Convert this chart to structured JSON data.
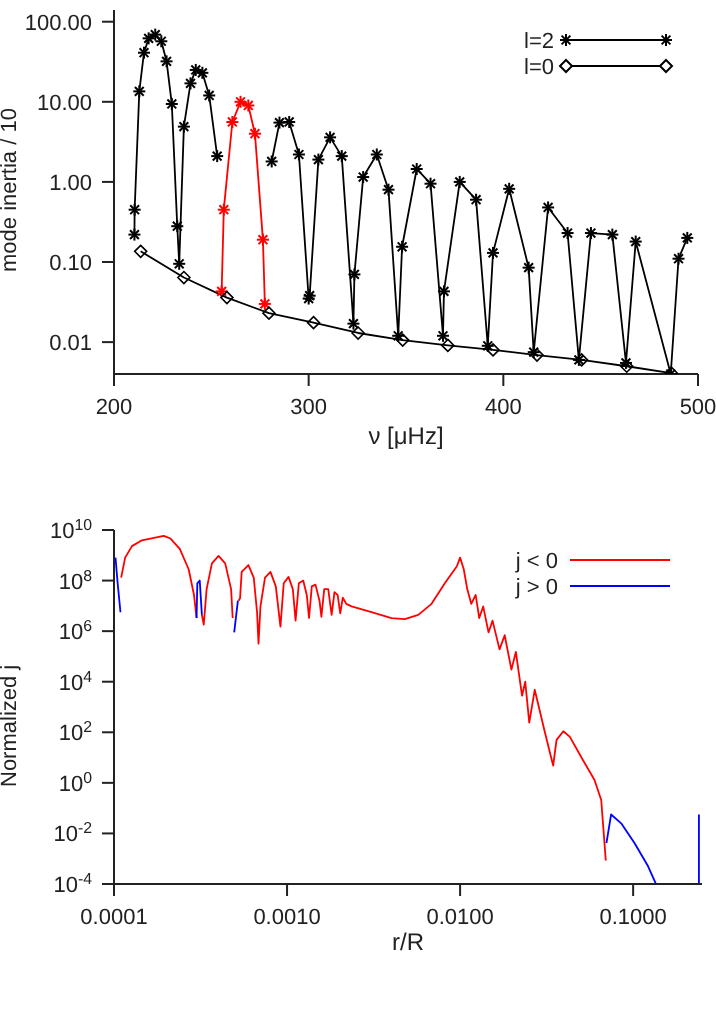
{
  "chart_data": [
    {
      "type": "line",
      "xlabel": "ν [μHz]",
      "ylabel": "mode inertia / 10",
      "log": "y",
      "legend": "top right",
      "xlim": [
        200,
        500
      ],
      "xticks": [
        200,
        300,
        400,
        500
      ],
      "ylim": [
        0.004,
        140
      ],
      "yticks": [
        0.01,
        {
          "value": 0.1,
          "label": "0.10"
        },
        {
          "value": 1,
          "label": "1.00"
        },
        {
          "value": 10,
          "label": "10.00"
        },
        {
          "value": 100,
          "label": "100.00"
        }
      ],
      "series": [
        {
          "name": "l=2",
          "color": "#000000",
          "marker": "cross",
          "x": [
            210.5,
            210.6,
            213,
            215.4,
            217.8,
            221.2,
            224.3,
            227,
            229.7,
            232.5,
            233.5,
            235.9,
            239.3,
            242,
            245.4,
            248.9,
            253,
            265,
            281,
            285,
            290,
            295,
            300,
            300.5,
            305,
            311,
            317,
            323,
            323.5,
            328,
            335,
            341,
            346,
            348,
            355.5,
            362.6,
            369,
            369.5,
            377.6,
            386,
            392,
            394.7,
            403,
            413,
            415.6,
            423,
            433,
            438.8,
            445,
            456,
            463,
            468,
            486,
            490,
            494.5
          ],
          "values": [
            0.22,
            0.45,
            13.5,
            41,
            62,
            69,
            57,
            32,
            9.4,
            0.28,
            0.095,
            4.9,
            17,
            25,
            23,
            12,
            2.1,
            null,
            1.8,
            5.5,
            5.6,
            2.2,
            0.035,
            0.038,
            1.9,
            3.6,
            2.1,
            0.017,
            0.07,
            1.15,
            2.2,
            0.8,
            0.012,
            0.155,
            1.45,
            0.95,
            0.012,
            0.043,
            1.0,
            0.6,
            0.009,
            0.13,
            0.82,
            0.085,
            0.0075,
            0.48,
            0.23,
            0.006,
            0.23,
            0.22,
            0.0055,
            0.18,
            0.004,
            0.11,
            0.2
          ]
        },
        {
          "color": "#ff0000",
          "marker": "cross",
          "x": [
            255.3,
            256.4,
            260.8,
            265,
            269,
            272.4,
            276.5,
            277.5
          ],
          "values": [
            0.043,
            0.45,
            5.6,
            10,
            9,
            4,
            0.19,
            0.03
          ]
        },
        {
          "name": "l=0",
          "color": "#000000",
          "marker": "diamond",
          "x": [
            213.7,
            235.9,
            258,
            279.6,
            302.5,
            325.4,
            348.3,
            371.5,
            394.7,
            417.3,
            440.2,
            463.4,
            486.3
          ],
          "values": [
            0.136,
            0.064,
            0.036,
            0.023,
            0.0175,
            0.013,
            0.0106,
            0.0091,
            0.008,
            0.0069,
            0.006,
            0.005,
            0.0041
          ]
        }
      ]
    },
    {
      "type": "line",
      "xlabel": "r/R",
      "ylabel": "Normalized j",
      "log": "xy",
      "legend": "top right",
      "marker": "none",
      "xlim": [
        0.0001,
        0.25
      ],
      "xticks": [
        0.0001,
        {
          "value": 0.001,
          "label": "0.0010"
        },
        {
          "value": 0.01,
          "label": "0.0100"
        },
        {
          "value": 0.1,
          "label": "0.1000"
        }
      ],
      "ylim": [
        0.0001,
        10000000000
      ],
      "yticks": [
        {
          "value": 0.0001,
          "label": "10$^{-4}$"
        },
        {
          "value": 0.01,
          "label": "10$^{-2}$"
        },
        {
          "value": 1,
          "label": "10$^{0}$"
        },
        {
          "value": 100,
          "label": "10$^{2}$"
        },
        {
          "value": 10000,
          "label": "10$^{4}$"
        },
        {
          "value": 1000000,
          "label": "10$^{6}$"
        },
        {
          "value": 100000000,
          "label": "10$^{8}$"
        },
        {
          "value": 10000000000,
          "label": "10$^{10}$"
        }
      ],
      "series": [
        {
          "name": "j < 0",
          "color": "#ff0000",
          "x": [
            0.00011,
            0.000116,
            0.000127,
            0.000145,
            0.000173,
            0.000194,
            0.000212,
            0.00024,
            0.00027,
            0.00029,
            0.0003,
            0.00031,
            0.000322,
            0.00033,
            0.000343,
            0.000368,
            0.000402,
            0.000439,
            0.000475,
            0.000485,
            0.000505,
            0.000525,
            0.000535,
            0.000547,
            0.000598,
            0.000642,
            0.000671,
            0.000684,
            0.000702,
            0.000746,
            0.000802,
            0.000861,
            0.000916,
            0.000957,
            0.00102,
            0.00108,
            0.00112,
            0.00117,
            0.00124,
            0.0013,
            0.00134,
            0.00139,
            0.00146,
            0.00154,
            0.00158,
            0.00164,
            0.00173,
            0.00181,
            0.00188,
            0.00196,
            0.00203,
            0.0021,
            0.0022,
            0.00236,
            0.00308,
            0.00401,
            0.00479,
            0.00573,
            0.00684,
            0.00816,
            0.00958,
            0.01,
            0.0105,
            0.011,
            0.0116,
            0.0123,
            0.0129,
            0.0136,
            0.0146,
            0.0154,
            0.0169,
            0.0181,
            0.0198,
            0.021,
            0.0228,
            0.0238,
            0.0251,
            0.027,
            0.0308,
            0.0345,
            0.0361,
            0.0395,
            0.0431,
            0.0501,
            0.0598,
            0.0654,
            0.0695
          ],
          "values": [
            130000000.0,
            810000000.0,
            2300000000.0,
            3900000000.0,
            5000000000.0,
            5900000000.0,
            4600000000.0,
            1800000000.0,
            280000000.0,
            27000000.0,
            3300000.0,
            null,
            4400000.0,
            1800000.0,
            46000000.0,
            480000000.0,
            950000000.0,
            480000000.0,
            46000000.0,
            3300000.0,
            null,
            16000000.0,
            20000000.0,
            220000000.0,
            410000000.0,
            130000000.0,
            5600000.0,
            320000.0,
            9500000.0,
            130000000.0,
            220000000.0,
            59000000.0,
            1500000.0,
            78000000.0,
            140000000.0,
            46000000.0,
            2600000.0,
            78000000.0,
            100000000.0,
            27000000.0,
            3300000.0,
            59000000.0,
            69000000.0,
            16000000.0,
            3700000.0,
            46000000.0,
            46000000.0,
            4400000.0,
            35000000.0,
            27000000.0,
            5000000.0,
            21000000.0,
            12000000.0,
            9500000.0,
            5600000.0,
            3300000.0,
            3000000.0,
            4400000.0,
            12000000.0,
            78000000.0,
            370000000.0,
            810000000.0,
            280000000.0,
            46000000.0,
            12000000.0,
            27000000.0,
            3300000.0,
            9500000.0,
            890000.0,
            2600000.0,
            190000.0,
            690000.0,
            30000.0,
            150000.0,
            2800.0,
            10000.0,
            240.0,
            4800.0,
            110.0,
            4.8,
            50,
            110,
            66,
            10.5,
            1.3,
            0.21,
            0.00085
          ]
        },
        {
          "name": "j > 0",
          "color": "#0000ff",
          "x": [
            0.000102,
            0.000105,
            0.000109,
            0.0002,
            0.0003,
            0.000303,
            0.000313,
            0.000322,
            0.0004,
            0.000495,
            0.00052,
            0.01,
            0.0701,
            0.0746,
            0.0853,
            0.102,
            0.122,
            0.135,
            0.2,
            0.24,
            0.24
          ],
          "values": [
            810000000.0,
            78000000.0,
            5600000.0,
            null,
            3300000.0,
            78000000.0,
            100000000.0,
            4400000.0,
            null,
            890000.0,
            16000000.0,
            null,
            0.0041,
            0.056,
            0.025,
            0.0041,
            0.0005,
            0.000105,
            null,
            0.0001,
            0.056
          ]
        }
      ]
    }
  ]
}
